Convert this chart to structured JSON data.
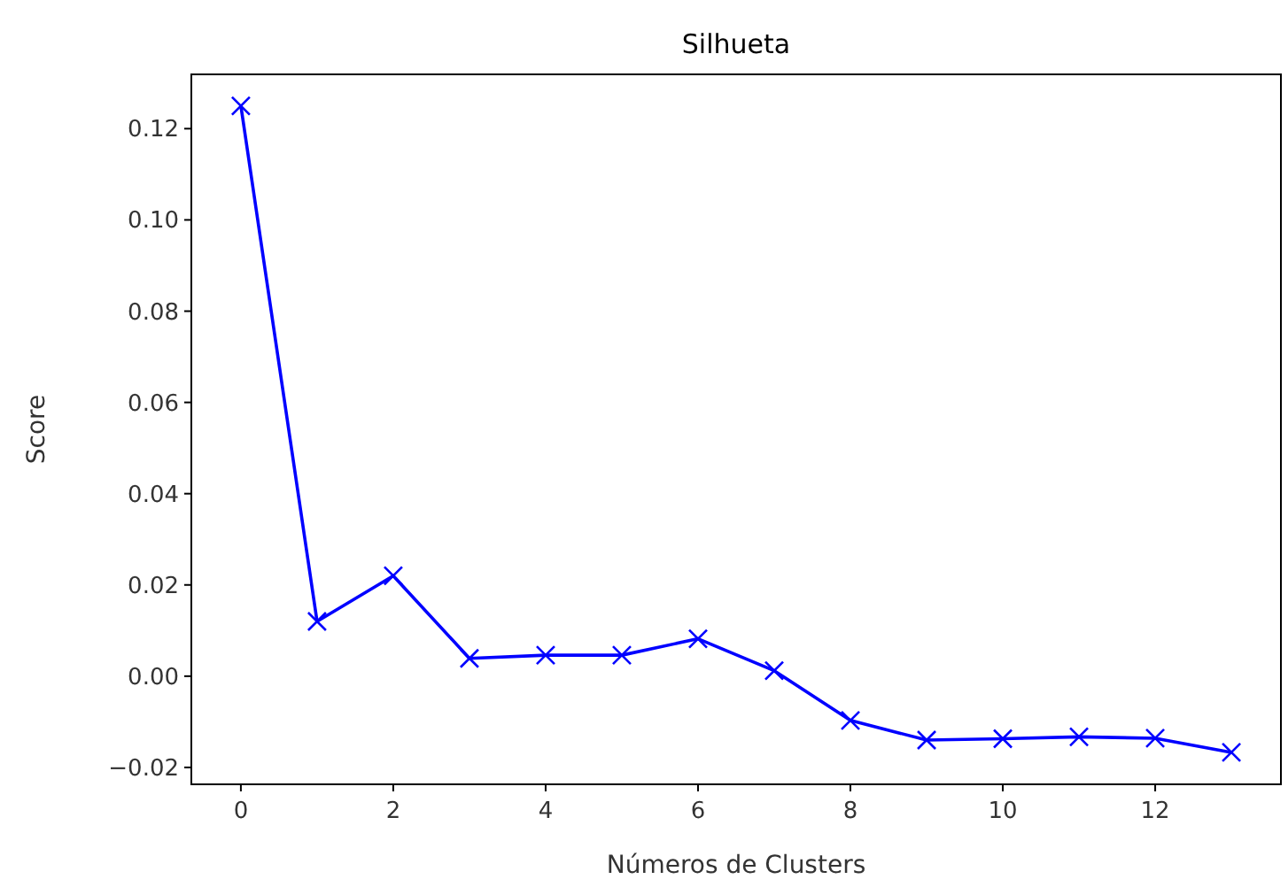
{
  "chart_data": {
    "type": "line",
    "title": "Silhueta",
    "xlabel": "Números de Clusters",
    "ylabel": "Score",
    "x": [
      0,
      1,
      2,
      3,
      4,
      5,
      6,
      7,
      8,
      9,
      10,
      11,
      12,
      13
    ],
    "series": [
      {
        "color": "#0000ff",
        "values": [
          0.125,
          0.012,
          0.022,
          0.0039,
          0.0046,
          0.0046,
          0.0082,
          0.0012,
          -0.0097,
          -0.014,
          -0.0137,
          -0.0133,
          -0.0136,
          -0.0167
        ]
      }
    ],
    "xlim": [
      -0.65,
      13.65
    ],
    "ylim": [
      -0.0237,
      0.1319
    ],
    "xticks": [
      0,
      2,
      4,
      6,
      8,
      10,
      12
    ],
    "yticks": [
      {
        "value": -0.02,
        "label": "−0.02"
      },
      {
        "value": 0,
        "label": "0.00"
      },
      {
        "value": 0.02,
        "label": "0.02"
      },
      {
        "value": 0.04,
        "label": "0.04"
      },
      {
        "value": 0.06,
        "label": "0.06"
      },
      {
        "value": 0.08,
        "label": "0.08"
      },
      {
        "value": 0.1,
        "label": "0.10"
      },
      {
        "value": 0.12,
        "label": "0.12"
      }
    ],
    "marker": "cross",
    "line_style": "solid",
    "grid": false
  }
}
